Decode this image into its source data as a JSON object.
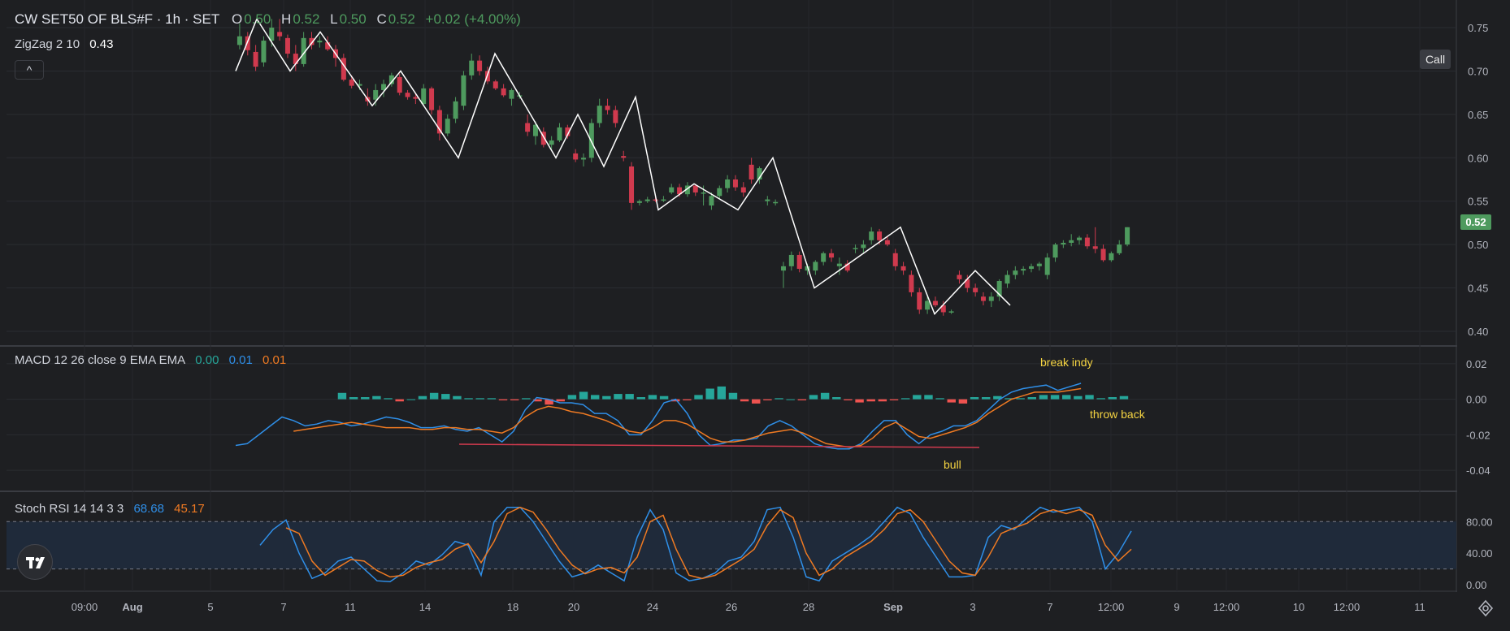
{
  "main_legend": {
    "symbol": "CW SET50 OF BLS#F · 1h · SET",
    "o_label": "O",
    "o_value": "0.50",
    "h_label": "H",
    "h_value": "0.52",
    "l_label": "L",
    "l_value": "0.50",
    "c_label": "C",
    "c_value": "0.52",
    "change": "+0.02 (+4.00%)",
    "zigzag_label": "ZigZag 2 10",
    "zigzag_value": "0.43",
    "collapse_glyph": "^"
  },
  "call_button": "Call",
  "current_price": "0.52",
  "macd_legend": {
    "label": "MACD 12 26 close 9 EMA EMA",
    "v1": "0.00",
    "v2": "0.01",
    "v3": "0.01"
  },
  "stoch_legend": {
    "label": "Stoch RSI 14 14 3 3",
    "v1": "68.68",
    "v2": "45.17"
  },
  "annotations": {
    "break_indy": "break indy",
    "throw_back": "throw back",
    "bull": "bull"
  },
  "time_axis": [
    "09:00",
    "Aug",
    "5",
    "7",
    "11",
    "14",
    "18",
    "20",
    "24",
    "26",
    "28",
    "Sep",
    "3",
    "7",
    "12:00",
    "9",
    "12:00",
    "10",
    "12:00",
    "11"
  ],
  "icons": {
    "logo": "tradingview-logo-icon",
    "settings": "gear-icon"
  },
  "colors": {
    "up": "#4e9a5e",
    "down": "#d03a4e",
    "zigzag": "#ffffff",
    "macd": "#2f8fe8",
    "signal": "#ef7a22",
    "hist_up": "#26a69a",
    "hist_down": "#ef5350",
    "annotation": "#f5d442",
    "stoch_band": "#1f2a3a"
  },
  "chart_data": [
    {
      "type": "candlestick",
      "title": "CW SET50 OF BLS#F · 1h · SET",
      "y_ticks": [
        "0.75",
        "0.70",
        "0.65",
        "0.60",
        "0.55",
        "0.50",
        "0.45",
        "0.40"
      ],
      "ylim": [
        0.385,
        0.765
      ],
      "candles": [
        [
          0.73,
          0.755,
          0.725,
          0.74
        ],
        [
          0.74,
          0.745,
          0.718,
          0.724
        ],
        [
          0.722,
          0.73,
          0.7,
          0.705
        ],
        [
          0.71,
          0.74,
          0.705,
          0.735
        ],
        [
          0.735,
          0.76,
          0.728,
          0.75
        ],
        [
          0.745,
          0.76,
          0.735,
          0.74
        ],
        [
          0.738,
          0.742,
          0.715,
          0.72
        ],
        [
          0.72,
          0.73,
          0.7,
          0.708
        ],
        [
          0.708,
          0.745,
          0.705,
          0.738
        ],
        [
          0.738,
          0.745,
          0.725,
          0.73
        ],
        [
          0.733,
          0.74,
          0.727,
          0.735
        ],
        [
          0.733,
          0.74,
          0.723,
          0.725
        ],
        [
          0.725,
          0.73,
          0.705,
          0.715
        ],
        [
          0.715,
          0.72,
          0.688,
          0.69
        ],
        [
          0.69,
          0.695,
          0.68,
          0.683
        ],
        [
          0.683,
          0.69,
          0.678,
          0.685
        ],
        [
          0.67,
          0.68,
          0.66,
          0.665
        ],
        [
          0.667,
          0.685,
          0.66,
          0.678
        ],
        [
          0.678,
          0.69,
          0.67,
          0.685
        ],
        [
          0.685,
          0.698,
          0.682,
          0.695
        ],
        [
          0.693,
          0.697,
          0.672,
          0.675
        ],
        [
          0.675,
          0.678,
          0.667,
          0.67
        ],
        [
          0.67,
          0.675,
          0.662,
          0.668
        ],
        [
          0.662,
          0.685,
          0.66,
          0.68
        ],
        [
          0.68,
          0.682,
          0.65,
          0.655
        ],
        [
          0.655,
          0.66,
          0.62,
          0.628
        ],
        [
          0.628,
          0.65,
          0.625,
          0.645
        ],
        [
          0.645,
          0.67,
          0.64,
          0.665
        ],
        [
          0.66,
          0.7,
          0.655,
          0.695
        ],
        [
          0.695,
          0.72,
          0.69,
          0.712
        ],
        [
          0.712,
          0.718,
          0.695,
          0.7
        ],
        [
          0.7,
          0.705,
          0.685,
          0.688
        ],
        [
          0.688,
          0.69,
          0.678,
          0.68
        ],
        [
          0.68,
          0.685,
          0.67,
          0.672
        ],
        [
          0.668,
          0.68,
          0.66,
          0.678
        ],
        [
          0.672,
          0.676,
          0.668,
          0.672
        ],
        [
          0.64,
          0.65,
          0.625,
          0.63
        ],
        [
          0.625,
          0.642,
          0.615,
          0.638
        ],
        [
          0.63,
          0.635,
          0.612,
          0.615
        ],
        [
          0.615,
          0.625,
          0.61,
          0.62
        ],
        [
          0.62,
          0.64,
          0.618,
          0.635
        ],
        [
          0.635,
          0.638,
          0.622,
          0.625
        ],
        [
          0.605,
          0.61,
          0.595,
          0.598
        ],
        [
          0.598,
          0.605,
          0.59,
          0.6
        ],
        [
          0.6,
          0.645,
          0.595,
          0.64
        ],
        [
          0.64,
          0.668,
          0.635,
          0.66
        ],
        [
          0.66,
          0.668,
          0.65,
          0.655
        ],
        [
          0.655,
          0.66,
          0.635,
          0.64
        ],
        [
          0.602,
          0.608,
          0.596,
          0.6
        ],
        [
          0.59,
          0.595,
          0.54,
          0.548
        ],
        [
          0.548,
          0.552,
          0.545,
          0.55
        ],
        [
          0.55,
          0.555,
          0.548,
          0.552
        ],
        [
          0.552,
          0.556,
          0.549,
          0.551
        ],
        [
          0.551,
          0.556,
          0.549,
          0.552
        ],
        [
          0.56,
          0.57,
          0.558,
          0.566
        ],
        [
          0.566,
          0.57,
          0.555,
          0.558
        ],
        [
          0.558,
          0.572,
          0.555,
          0.568
        ],
        [
          0.568,
          0.57,
          0.556,
          0.56
        ],
        [
          0.56,
          0.568,
          0.545,
          0.56
        ],
        [
          0.545,
          0.56,
          0.54,
          0.556
        ],
        [
          0.556,
          0.568,
          0.552,
          0.565
        ],
        [
          0.565,
          0.58,
          0.56,
          0.575
        ],
        [
          0.575,
          0.58,
          0.562,
          0.566
        ],
        [
          0.566,
          0.572,
          0.555,
          0.56
        ],
        [
          0.592,
          0.6,
          0.57,
          0.575
        ],
        [
          0.575,
          0.59,
          0.57,
          0.588
        ],
        [
          0.55,
          0.556,
          0.545,
          0.552
        ],
        [
          0.548,
          0.552,
          0.545,
          0.549
        ],
        [
          0.47,
          0.48,
          0.45,
          0.475
        ],
        [
          0.475,
          0.492,
          0.47,
          0.488
        ],
        [
          0.488,
          0.492,
          0.468,
          0.472
        ],
        [
          0.47,
          0.478,
          0.465,
          0.475
        ],
        [
          0.47,
          0.482,
          0.465,
          0.48
        ],
        [
          0.48,
          0.492,
          0.476,
          0.49
        ],
        [
          0.49,
          0.495,
          0.48,
          0.485
        ],
        [
          0.475,
          0.485,
          0.465,
          0.478
        ],
        [
          0.478,
          0.482,
          0.468,
          0.47
        ],
        [
          0.495,
          0.5,
          0.49,
          0.496
        ],
        [
          0.496,
          0.505,
          0.49,
          0.5
        ],
        [
          0.505,
          0.52,
          0.5,
          0.515
        ],
        [
          0.515,
          0.518,
          0.5,
          0.505
        ],
        [
          0.505,
          0.51,
          0.498,
          0.5
        ],
        [
          0.49,
          0.495,
          0.47,
          0.475
        ],
        [
          0.475,
          0.48,
          0.465,
          0.47
        ],
        [
          0.465,
          0.47,
          0.44,
          0.445
        ],
        [
          0.445,
          0.45,
          0.42,
          0.425
        ],
        [
          0.425,
          0.44,
          0.42,
          0.435
        ],
        [
          0.435,
          0.44,
          0.428,
          0.43
        ],
        [
          0.43,
          0.435,
          0.418,
          0.422
        ],
        [
          0.422,
          0.425,
          0.42,
          0.423
        ],
        [
          0.465,
          0.47,
          0.455,
          0.46
        ],
        [
          0.46,
          0.465,
          0.445,
          0.45
        ],
        [
          0.45,
          0.455,
          0.44,
          0.445
        ],
        [
          0.44,
          0.445,
          0.43,
          0.435
        ],
        [
          0.435,
          0.445,
          0.428,
          0.44
        ],
        [
          0.44,
          0.46,
          0.435,
          0.458
        ],
        [
          0.455,
          0.47,
          0.45,
          0.465
        ],
        [
          0.465,
          0.475,
          0.46,
          0.47
        ],
        [
          0.47,
          0.475,
          0.465,
          0.472
        ],
        [
          0.472,
          0.478,
          0.468,
          0.475
        ],
        [
          0.475,
          0.48,
          0.47,
          0.478
        ],
        [
          0.465,
          0.49,
          0.46,
          0.485
        ],
        [
          0.485,
          0.502,
          0.48,
          0.5
        ],
        [
          0.5,
          0.505,
          0.496,
          0.502
        ],
        [
          0.502,
          0.512,
          0.498,
          0.505
        ],
        [
          0.505,
          0.51,
          0.5,
          0.508
        ],
        [
          0.508,
          0.512,
          0.495,
          0.498
        ],
        [
          0.498,
          0.52,
          0.49,
          0.495
        ],
        [
          0.495,
          0.5,
          0.48,
          0.482
        ],
        [
          0.482,
          0.492,
          0.48,
          0.49
        ],
        [
          0.49,
          0.505,
          0.488,
          0.5
        ],
        [
          0.5,
          0.52,
          0.498,
          0.52
        ]
      ],
      "zigzag": [
        [
          0.7,
          0.76
        ],
        [
          0.76,
          0.7
        ],
        [
          0.7,
          0.745
        ],
        [
          0.745,
          0.66
        ],
        [
          0.66,
          0.7
        ],
        [
          0.7,
          0.6
        ],
        [
          0.6,
          0.72
        ],
        [
          0.72,
          0.6
        ],
        [
          0.6,
          0.65
        ],
        [
          0.65,
          0.59
        ],
        [
          0.59,
          0.67
        ],
        [
          0.67,
          0.54
        ],
        [
          0.54,
          0.57
        ],
        [
          0.57,
          0.54
        ],
        [
          0.54,
          0.6
        ],
        [
          0.6,
          0.45
        ],
        [
          0.45,
          0.52
        ],
        [
          0.52,
          0.42
        ],
        [
          0.42,
          0.47
        ],
        [
          0.47,
          0.43
        ]
      ]
    },
    {
      "type": "line",
      "title": "MACD 12 26 close 9 EMA EMA",
      "y_ticks": [
        "0.02",
        "0.00",
        "-0.02",
        "-0.04"
      ],
      "ylim": [
        -0.045,
        0.025
      ],
      "series": [
        {
          "name": "MACD",
          "values": [
            -0.026,
            -0.025,
            -0.02,
            -0.015,
            -0.01,
            -0.012,
            -0.015,
            -0.014,
            -0.012,
            -0.013,
            -0.015,
            -0.014,
            -0.012,
            -0.01,
            -0.011,
            -0.013,
            -0.016,
            -0.016,
            -0.015,
            -0.017,
            -0.018,
            -0.016,
            -0.02,
            -0.024,
            -0.018,
            -0.006,
            0.001,
            0.0,
            -0.002,
            -0.002,
            -0.003,
            -0.008,
            -0.008,
            -0.012,
            -0.02,
            -0.02,
            -0.012,
            -0.002,
            0.0,
            -0.008,
            -0.02,
            -0.026,
            -0.025,
            -0.023,
            -0.023,
            -0.022,
            -0.015,
            -0.012,
            -0.015,
            -0.02,
            -0.025,
            -0.027,
            -0.028,
            -0.028,
            -0.025,
            -0.018,
            -0.012,
            -0.012,
            -0.02,
            -0.025,
            -0.02,
            -0.018,
            -0.015,
            -0.015,
            -0.012,
            -0.006,
            0.0,
            0.004,
            0.006,
            0.007,
            0.008,
            0.005,
            0.007,
            0.009
          ]
        },
        {
          "name": "Signal",
          "values": [
            null,
            null,
            null,
            null,
            null,
            -0.018,
            -0.017,
            -0.016,
            -0.015,
            -0.014,
            -0.013,
            -0.014,
            -0.015,
            -0.016,
            -0.016,
            -0.016,
            -0.017,
            -0.017,
            -0.016,
            -0.016,
            -0.017,
            -0.017,
            -0.018,
            -0.019,
            -0.016,
            -0.01,
            -0.006,
            -0.004,
            -0.005,
            -0.007,
            -0.008,
            -0.01,
            -0.012,
            -0.015,
            -0.018,
            -0.019,
            -0.016,
            -0.012,
            -0.012,
            -0.014,
            -0.018,
            -0.022,
            -0.024,
            -0.024,
            -0.023,
            -0.021,
            -0.019,
            -0.018,
            -0.017,
            -0.019,
            -0.022,
            -0.025,
            -0.026,
            -0.027,
            -0.026,
            -0.022,
            -0.016,
            -0.013,
            -0.017,
            -0.021,
            -0.022,
            -0.02,
            -0.018,
            -0.016,
            -0.013,
            -0.008,
            -0.004,
            0.0,
            0.002,
            0.004,
            0.004,
            0.004,
            0.005,
            0.006
          ]
        }
      ],
      "annotations": [
        "break indy",
        "throw back",
        "bull"
      ]
    },
    {
      "type": "line",
      "title": "Stoch RSI 14 14 3 3",
      "y_ticks": [
        "80.00",
        "40.00",
        "0.00"
      ],
      "ylim": [
        -4,
        108
      ],
      "band": [
        20,
        80
      ],
      "series": [
        {
          "name": "K",
          "values": [
            50,
            70,
            82,
            40,
            8,
            15,
            30,
            35,
            20,
            5,
            4,
            15,
            30,
            25,
            38,
            55,
            50,
            12,
            80,
            98,
            98,
            80,
            55,
            30,
            10,
            15,
            25,
            15,
            5,
            60,
            95,
            70,
            15,
            5,
            8,
            15,
            30,
            35,
            55,
            95,
            98,
            60,
            10,
            5,
            30,
            40,
            50,
            62,
            80,
            98,
            90,
            60,
            35,
            10,
            10,
            12,
            60,
            75,
            70,
            85,
            98,
            92,
            95,
            98,
            80,
            20,
            40,
            68
          ]
        },
        {
          "name": "D",
          "values": [
            null,
            null,
            72,
            65,
            30,
            12,
            22,
            32,
            30,
            18,
            10,
            12,
            22,
            28,
            32,
            45,
            52,
            28,
            55,
            90,
            98,
            92,
            70,
            45,
            25,
            14,
            20,
            22,
            15,
            35,
            80,
            88,
            45,
            12,
            8,
            12,
            22,
            32,
            45,
            75,
            95,
            85,
            40,
            12,
            20,
            35,
            45,
            55,
            70,
            90,
            95,
            80,
            55,
            30,
            15,
            12,
            35,
            65,
            72,
            78,
            90,
            95,
            90,
            95,
            88,
            50,
            30,
            45
          ]
        }
      ]
    }
  ]
}
